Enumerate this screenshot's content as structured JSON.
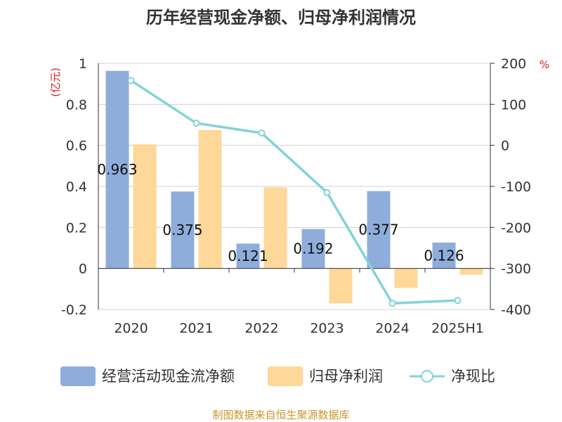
{
  "chart_data": {
    "type": "bar",
    "title": "历年经营现金净额、归母净利润情况",
    "categories": [
      "2020",
      "2021",
      "2022",
      "2023",
      "2024",
      "2025H1"
    ],
    "left_axis": {
      "unit": "(亿元)",
      "ylim": [
        -0.2,
        1
      ],
      "ticks": [
        "-0.2",
        "0",
        "0.2",
        "0.4",
        "0.6",
        "0.8",
        "1"
      ]
    },
    "right_axis": {
      "unit": "%",
      "ylim": [
        -400,
        200
      ],
      "ticks": [
        "-400",
        "-300",
        "-200",
        "-100",
        "0",
        "100",
        "200"
      ]
    },
    "series": [
      {
        "name": "经营活动现金流净额",
        "kind": "bar",
        "axis": "left",
        "color": "#8eaddb",
        "values": [
          0.963,
          0.375,
          0.121,
          0.192,
          0.377,
          0.126
        ],
        "labels": [
          "0.963",
          "0.375",
          "0.121",
          "0.192",
          "0.377",
          "0.126"
        ]
      },
      {
        "name": "归母净利润",
        "kind": "bar",
        "axis": "left",
        "color": "#fdd898",
        "values": [
          0.605,
          0.675,
          0.395,
          -0.17,
          -0.095,
          -0.03
        ]
      },
      {
        "name": "净现比",
        "kind": "line",
        "axis": "right",
        "color": "#84d2d8",
        "values": [
          158,
          54,
          30,
          -115,
          -385,
          -378
        ]
      }
    ],
    "grid": true,
    "legend": "bottom",
    "source": "制图数据来自恒生聚源数据库"
  }
}
